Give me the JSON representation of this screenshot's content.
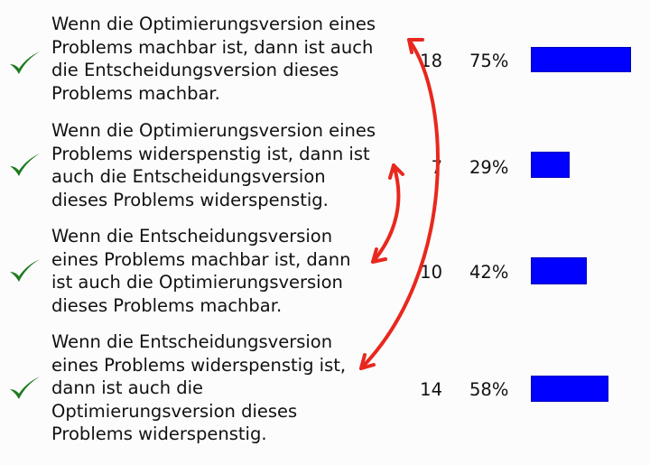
{
  "answers": [
    {
      "text": "Wenn die Optimierungsversion eines\nProblems machbar ist, dann ist auch\ndie Entscheidungsversion dieses\nProblems machbar.",
      "count": "18",
      "percent": "75%",
      "share": 0.75,
      "correct": true
    },
    {
      "text": "Wenn die Optimierungsversion eines\nProblems widerspenstig ist, dann ist\nauch die Entscheidungsversion\ndieses Problems widerspenstig.",
      "count": "7",
      "percent": "29%",
      "share": 0.29,
      "correct": true
    },
    {
      "text": "Wenn die Entscheidungsversion\neines Problems machbar ist, dann\nist auch die Optimierungsversion\ndieses Problems machbar.",
      "count": "10",
      "percent": "42%",
      "share": 0.42,
      "correct": true
    },
    {
      "text": "Wenn die Entscheidungsversion\neines Problems widerspenstig ist,\ndann ist auch die\nOptimierungsversion dieses\nProblems widerspenstig.",
      "count": "14",
      "percent": "58%",
      "share": 0.58,
      "correct": true
    }
  ],
  "colors": {
    "bar": "#0000ff",
    "check": "#1f7a1f",
    "annotation": "#e8281e"
  },
  "icons": {
    "check": "checkmark-icon"
  }
}
